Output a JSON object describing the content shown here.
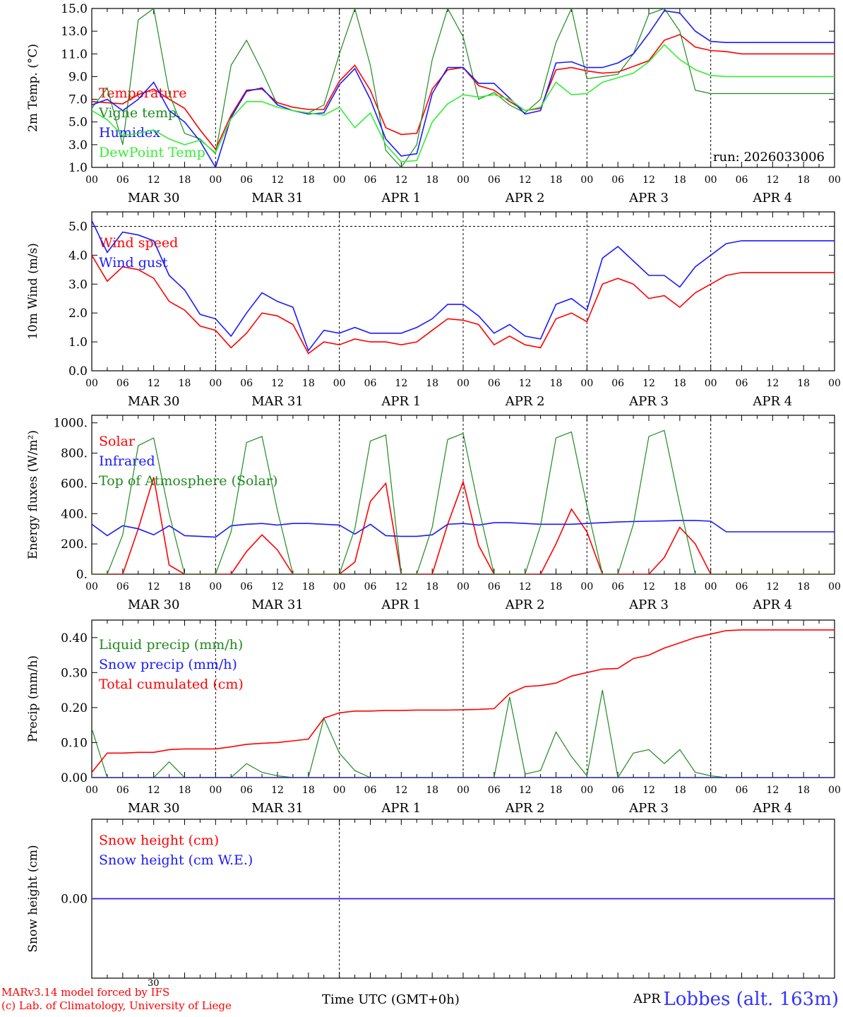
{
  "colors": {
    "red": "#ff0000",
    "blue": "#1a1aff",
    "green": "#208a20",
    "lightgreen": "#33ee33",
    "axis": "#000000",
    "grid": "#000000"
  },
  "day_labels": [
    "MAR 30",
    "MAR 31",
    "APR  1",
    "APR  2",
    "APR  3",
    "APR  4"
  ],
  "hour_labels": [
    "00",
    "06",
    "12",
    "18"
  ],
  "final_hour_label": "00",
  "footer": {
    "model": "MARv3.14 model forced by IFS",
    "lab": "(c) Lab. of Climatology, University of Liege",
    "xlabel": "Time UTC (GMT+0h)",
    "station": "Lobbes (alt. 163m)",
    "bottom_tick_30": "30",
    "bottom_tick_apr": "APR"
  },
  "chart_data": [
    {
      "id": "temp",
      "type": "line",
      "ylabel": "2m Temp. (°C)",
      "ylim": [
        1.0,
        15.0
      ],
      "yticks": [
        1.0,
        3.0,
        5.0,
        7.0,
        9.0,
        11.0,
        13.0,
        15.0
      ],
      "ytick_labels": [
        "1.0",
        "3.0",
        "5.0",
        "7.0",
        "9.0",
        "11.0",
        "13.0",
        "15.0"
      ],
      "annotation": "run: 2026033006",
      "x_hours": [
        0,
        3,
        6,
        9,
        12,
        15,
        18,
        21,
        24,
        27,
        30,
        33,
        36,
        39,
        42,
        45,
        48,
        51,
        54,
        57,
        60,
        63,
        66,
        69,
        72,
        75,
        78,
        81,
        84,
        87,
        90,
        93,
        96,
        99,
        102,
        105,
        108,
        111,
        114,
        117,
        120,
        123,
        126,
        129,
        132,
        135,
        138,
        141,
        144
      ],
      "series": [
        {
          "name": "Temperature",
          "color": "red",
          "values": [
            6.8,
            6.7,
            6.6,
            7.4,
            7.9,
            7.0,
            6.2,
            4.3,
            2.6,
            5.6,
            7.8,
            7.9,
            6.7,
            6.3,
            6.1,
            6.1,
            8.6,
            10.0,
            7.8,
            4.5,
            3.9,
            4.0,
            7.9,
            9.6,
            9.8,
            8.2,
            7.8,
            6.8,
            6.0,
            6.2,
            9.6,
            9.8,
            9.5,
            9.3,
            9.4,
            9.9,
            10.4,
            12.2,
            12.7,
            11.6,
            11.3,
            11.2,
            11.0,
            11.0,
            11.0,
            11.0,
            11.0,
            11.0,
            11.0
          ]
        },
        {
          "name": "Vigne temp.",
          "color": "green",
          "values": [
            6.2,
            8.0,
            3.0,
            14.0,
            15.0,
            7.5,
            4.0,
            3.5,
            2.2,
            10.0,
            12.2,
            9.5,
            6.5,
            6.0,
            5.8,
            6.5,
            11.0,
            15.0,
            10.0,
            2.5,
            1.0,
            3.0,
            10.5,
            15.0,
            12.5,
            7.0,
            7.6,
            6.5,
            5.8,
            7.0,
            12.0,
            15.0,
            8.8,
            9.0,
            9.2,
            11.0,
            14.5,
            15.0,
            13.0,
            7.8,
            7.5,
            7.5,
            7.5,
            7.5,
            7.5,
            7.5,
            7.5,
            7.5,
            7.5
          ]
        },
        {
          "name": "Humidex",
          "color": "blue",
          "values": [
            6.5,
            7.0,
            6.0,
            7.0,
            8.5,
            6.0,
            5.0,
            3.3,
            1.0,
            5.4,
            7.7,
            8.0,
            6.5,
            6.0,
            5.7,
            5.8,
            8.3,
            9.7,
            7.0,
            3.5,
            2.0,
            2.2,
            7.5,
            9.8,
            9.8,
            8.4,
            8.4,
            7.1,
            5.7,
            6.0,
            10.2,
            10.3,
            9.8,
            9.8,
            10.2,
            11.0,
            12.8,
            14.8,
            14.6,
            13.0,
            12.1,
            12.0,
            12.0,
            12.0,
            12.0,
            12.0,
            12.0,
            12.0,
            12.0
          ]
        },
        {
          "name": "DewPoint Temp",
          "color": "lightgreen",
          "values": [
            6.0,
            5.2,
            3.8,
            4.0,
            4.3,
            3.5,
            3.0,
            3.4,
            2.3,
            5.3,
            6.8,
            6.8,
            6.3,
            6.0,
            5.8,
            5.6,
            6.3,
            4.5,
            5.8,
            3.0,
            1.5,
            1.6,
            5.0,
            6.6,
            7.4,
            7.2,
            7.4,
            7.0,
            6.0,
            6.3,
            8.5,
            7.4,
            7.5,
            8.5,
            8.9,
            9.3,
            10.3,
            11.8,
            10.5,
            9.6,
            9.1,
            9.0,
            9.0,
            9.0,
            9.0,
            9.0,
            9.0,
            9.0,
            9.0
          ]
        }
      ]
    },
    {
      "id": "wind",
      "type": "line",
      "ylabel": "10m Wind (m/s)",
      "ylim": [
        0.0,
        5.5
      ],
      "yticks": [
        0.0,
        1.0,
        2.0,
        3.0,
        4.0,
        5.0
      ],
      "ytick_labels": [
        "0.0",
        "1.0",
        "2.0",
        "3.0",
        "4.0",
        "5.0"
      ],
      "ref_line": 5.0,
      "x_hours": [
        0,
        3,
        6,
        9,
        12,
        15,
        18,
        21,
        24,
        27,
        30,
        33,
        36,
        39,
        42,
        45,
        48,
        51,
        54,
        57,
        60,
        63,
        66,
        69,
        72,
        75,
        78,
        81,
        84,
        87,
        90,
        93,
        96,
        99,
        102,
        105,
        108,
        111,
        114,
        117,
        120,
        123,
        126,
        129,
        132,
        135,
        138,
        141,
        144
      ],
      "series": [
        {
          "name": "Wind speed",
          "color": "red",
          "values": [
            4.0,
            3.1,
            3.6,
            3.5,
            3.2,
            2.4,
            2.1,
            1.55,
            1.4,
            0.8,
            1.3,
            2.0,
            1.9,
            1.6,
            0.6,
            1.0,
            0.9,
            1.1,
            1.0,
            1.0,
            0.9,
            1.0,
            1.4,
            1.8,
            1.75,
            1.6,
            0.9,
            1.2,
            0.9,
            0.8,
            1.8,
            2.0,
            1.7,
            3.0,
            3.2,
            3.0,
            2.5,
            2.6,
            2.2,
            2.7,
            3.0,
            3.3,
            3.4,
            3.4,
            3.4,
            3.4,
            3.4,
            3.4,
            3.4
          ]
        },
        {
          "name": "Wind gust",
          "color": "blue",
          "values": [
            5.2,
            4.1,
            4.8,
            4.7,
            4.5,
            3.3,
            2.8,
            1.95,
            1.8,
            1.2,
            2.0,
            2.7,
            2.4,
            2.2,
            0.7,
            1.4,
            1.3,
            1.5,
            1.3,
            1.3,
            1.3,
            1.5,
            1.8,
            2.3,
            2.3,
            1.9,
            1.3,
            1.6,
            1.2,
            1.1,
            2.3,
            2.5,
            2.1,
            3.9,
            4.3,
            3.8,
            3.3,
            3.3,
            2.9,
            3.6,
            4.0,
            4.4,
            4.5,
            4.5,
            4.5,
            4.5,
            4.5,
            4.5,
            4.5
          ]
        }
      ]
    },
    {
      "id": "energy",
      "type": "line",
      "ylabel": "Energy fluxes (W/m²)",
      "ylim": [
        0,
        1050
      ],
      "yticks": [
        0,
        200,
        400,
        600,
        800,
        1000
      ],
      "ytick_labels": [
        "0.",
        "200.",
        "400.",
        "600.",
        "800.",
        "1000."
      ],
      "x_hours": [
        0,
        3,
        6,
        9,
        12,
        15,
        18,
        21,
        24,
        27,
        30,
        33,
        36,
        39,
        42,
        45,
        48,
        51,
        54,
        57,
        60,
        63,
        66,
        69,
        72,
        75,
        78,
        81,
        84,
        87,
        90,
        93,
        96,
        99,
        102,
        105,
        108,
        111,
        114,
        117,
        120,
        123,
        126,
        129,
        132,
        135,
        138,
        141,
        144
      ],
      "series": [
        {
          "name": "Solar",
          "color": "red",
          "values": [
            0,
            0,
            0,
            300,
            640,
            60,
            0,
            0,
            0,
            0,
            150,
            260,
            160,
            0,
            0,
            0,
            0,
            80,
            480,
            600,
            0,
            0,
            0,
            330,
            610,
            190,
            0,
            0,
            0,
            0,
            200,
            430,
            280,
            0,
            0,
            0,
            0,
            110,
            310,
            200,
            0,
            0,
            0,
            0,
            0,
            0,
            0,
            0,
            0
          ]
        },
        {
          "name": "Infrared",
          "color": "blue",
          "values": [
            330,
            255,
            320,
            300,
            260,
            320,
            255,
            250,
            245,
            320,
            330,
            335,
            325,
            335,
            335,
            330,
            325,
            265,
            330,
            255,
            250,
            250,
            260,
            330,
            335,
            325,
            340,
            340,
            335,
            330,
            330,
            330,
            335,
            340,
            345,
            348,
            350,
            352,
            355,
            355,
            350,
            280,
            280,
            280,
            280,
            280,
            280,
            280,
            280
          ]
        },
        {
          "name": "Top of Atmosphere (Solar)",
          "color": "green",
          "values": [
            0,
            0,
            260,
            850,
            900,
            400,
            0,
            0,
            0,
            280,
            870,
            910,
            420,
            0,
            0,
            0,
            0,
            300,
            880,
            920,
            0,
            0,
            310,
            890,
            930,
            440,
            0,
            0,
            0,
            320,
            900,
            940,
            450,
            0,
            0,
            330,
            910,
            950,
            460,
            0,
            0,
            0,
            0,
            0,
            0,
            0,
            0,
            0,
            0
          ]
        }
      ]
    },
    {
      "id": "precip",
      "type": "line",
      "ylabel": "Precip (mm/h)",
      "ylim": [
        0.0,
        0.45
      ],
      "yticks": [
        0.0,
        0.1,
        0.2,
        0.3,
        0.4
      ],
      "ytick_labels": [
        "0.00",
        "0.10",
        "0.20",
        "0.30",
        "0.40"
      ],
      "x_hours": [
        0,
        3,
        6,
        9,
        12,
        15,
        18,
        21,
        24,
        27,
        30,
        33,
        36,
        39,
        42,
        45,
        48,
        51,
        54,
        57,
        60,
        63,
        66,
        69,
        72,
        75,
        78,
        81,
        84,
        87,
        90,
        93,
        96,
        99,
        102,
        105,
        108,
        111,
        114,
        117,
        120,
        123,
        126,
        129,
        132,
        135,
        138,
        141,
        144
      ],
      "series": [
        {
          "name": "Liquid precip (mm/h)",
          "color": "green",
          "values": [
            0.14,
            0.0,
            0.0,
            0.0,
            0.0,
            0.045,
            0.0,
            0.0,
            0.0,
            0.0,
            0.04,
            0.015,
            0.005,
            0.0,
            0.0,
            0.17,
            0.07,
            0.02,
            0.0,
            0.0,
            0.0,
            0.0,
            0.0,
            0.0,
            0.0,
            0.0,
            0.0,
            0.23,
            0.01,
            0.02,
            0.13,
            0.06,
            0.005,
            0.25,
            0.0,
            0.07,
            0.08,
            0.04,
            0.08,
            0.015,
            0.005,
            0.0,
            0.0,
            0.0,
            0.0,
            0.0,
            0.0,
            0.0,
            0.0
          ]
        },
        {
          "name": "Snow precip (mm/h)",
          "color": "blue",
          "values": [
            0,
            0,
            0,
            0,
            0,
            0,
            0,
            0,
            0,
            0,
            0,
            0,
            0,
            0,
            0,
            0,
            0,
            0,
            0,
            0,
            0,
            0,
            0,
            0,
            0,
            0,
            0,
            0,
            0,
            0,
            0,
            0,
            0,
            0,
            0,
            0,
            0,
            0,
            0,
            0,
            0,
            0,
            0,
            0,
            0,
            0,
            0,
            0,
            0
          ]
        },
        {
          "name": "Total cumulated (cm)",
          "color": "red",
          "values": [
            0.015,
            0.07,
            0.07,
            0.072,
            0.072,
            0.08,
            0.082,
            0.082,
            0.082,
            0.088,
            0.095,
            0.098,
            0.1,
            0.105,
            0.11,
            0.17,
            0.185,
            0.19,
            0.19,
            0.192,
            0.192,
            0.193,
            0.193,
            0.193,
            0.194,
            0.195,
            0.197,
            0.24,
            0.26,
            0.263,
            0.27,
            0.29,
            0.3,
            0.31,
            0.312,
            0.34,
            0.35,
            0.37,
            0.385,
            0.4,
            0.41,
            0.42,
            0.422,
            0.422,
            0.422,
            0.422,
            0.422,
            0.422,
            0.422
          ]
        }
      ]
    },
    {
      "id": "snow",
      "type": "line",
      "ylabel": "Snow height (cm)",
      "ylim": [
        -1.0,
        1.0
      ],
      "yticks": [
        0.0
      ],
      "ytick_labels": [
        "0.00"
      ],
      "x_hours": [
        0,
        144
      ],
      "series": [
        {
          "name": "Snow height (cm)",
          "color": "red",
          "values": [
            0.0,
            0.0
          ]
        },
        {
          "name": "Snow height (cm W.E.)",
          "color": "blue",
          "values": [
            0.0,
            0.0
          ]
        }
      ]
    }
  ]
}
